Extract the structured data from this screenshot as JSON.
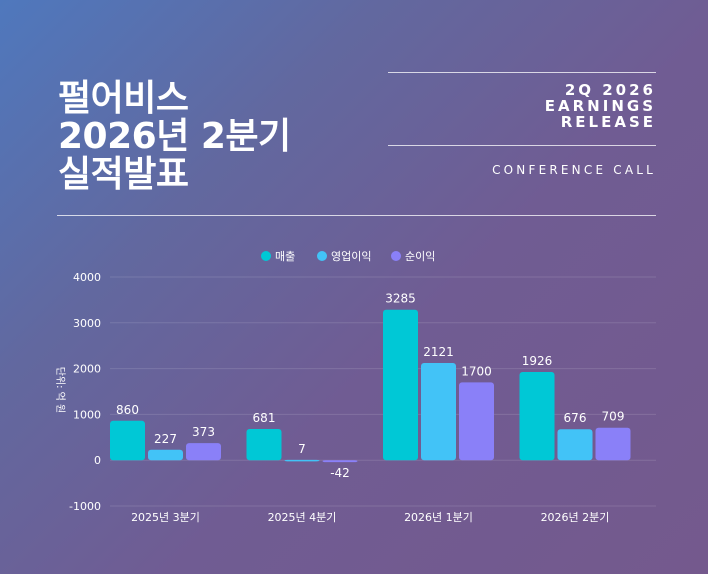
{
  "header": {
    "title_lines": [
      "펄어비스",
      "2026년 2분기",
      "실적발표"
    ],
    "release_lines": [
      "2Q 2026",
      "EARNINGS",
      "RELEASE"
    ],
    "conference": "CONFERENCE CALL"
  },
  "colors": {
    "매출": "#00c8d6",
    "영업이익": "#42c3f7",
    "순이익": "#8a80f8"
  },
  "chart_data": {
    "type": "bar",
    "categories": [
      "2025년 3분기",
      "2025년 4분기",
      "2026년 1분기",
      "2026년 2분기"
    ],
    "series": [
      {
        "name": "매출",
        "values": [
          860,
          681,
          3285,
          1926
        ]
      },
      {
        "name": "영업이익",
        "values": [
          227,
          7,
          2121,
          676
        ]
      },
      {
        "name": "순이익",
        "values": [
          373,
          -42,
          1700,
          709
        ]
      }
    ],
    "ylabel": "단위: 억 원",
    "ylim": [
      -1000,
      4000
    ],
    "yticks": [
      -1000,
      0,
      1000,
      2000,
      3000,
      4000
    ],
    "grid": true,
    "legend": "top-center"
  }
}
